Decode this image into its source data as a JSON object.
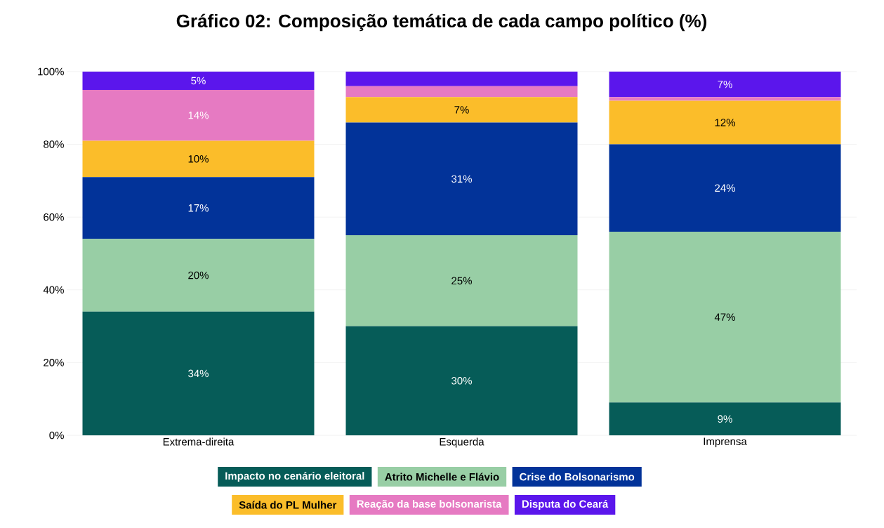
{
  "chart_data": {
    "type": "bar",
    "stacked": true,
    "title": "Gráfico 02: Composição temática de cada campo político (%)",
    "categories": [
      "Extrema-direita",
      "Esquerda",
      "Imprensa"
    ],
    "series": [
      {
        "name": "Impacto no cenário eleitoral",
        "color": "#065c58",
        "values": [
          34,
          30,
          9
        ],
        "value_labels": [
          "34%",
          "30%",
          "9%"
        ]
      },
      {
        "name": "Atrito Michelle e Flávio",
        "color": "#98cea5",
        "values": [
          20,
          25,
          47
        ],
        "value_labels": [
          "20%",
          "25%",
          "47%"
        ]
      },
      {
        "name": "Crise do Bolsonarismo",
        "color": "#023399",
        "values": [
          17,
          31,
          24
        ],
        "value_labels": [
          "17%",
          "31%",
          "24%"
        ]
      },
      {
        "name": "Saída do PL Mulher",
        "color": "#fbbd2a",
        "values": [
          10,
          7,
          12
        ],
        "value_labels": [
          "10%",
          "7%",
          "12%"
        ]
      },
      {
        "name": "Reação da base bolsonarista",
        "color": "#e67ac2",
        "values": [
          14,
          3,
          1
        ],
        "value_labels": [
          "14%",
          null,
          null
        ]
      },
      {
        "name": "Disputa do Ceará",
        "color": "#5b16ec",
        "values": [
          5,
          4,
          7
        ],
        "value_labels": [
          "5%",
          null,
          "7%"
        ]
      }
    ],
    "ylim": [
      0,
      100
    ],
    "yticks": [
      {
        "value": 0,
        "label": "0%"
      },
      {
        "value": 20,
        "label": "20%"
      },
      {
        "value": 40,
        "label": "40%"
      },
      {
        "value": 60,
        "label": "60%"
      },
      {
        "value": 80,
        "label": "80%"
      },
      {
        "value": 100,
        "label": "100%"
      }
    ],
    "grid": "y",
    "legend": "bottom"
  }
}
